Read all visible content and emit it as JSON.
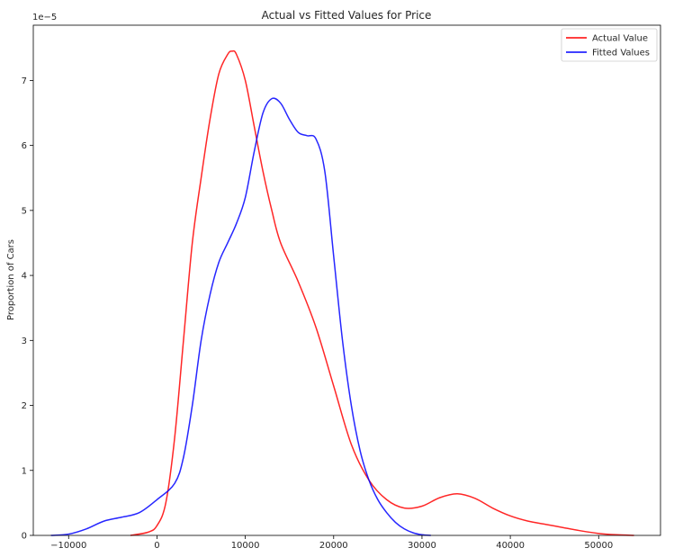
{
  "chart_data": {
    "type": "line",
    "title": "Actual vs Fitted Values for Price",
    "xlabel": "",
    "ylabel": "Proportion of Cars",
    "y_multiplier_label": "1e−5",
    "xlim": [
      -14000,
      57000
    ],
    "ylim": [
      0,
      7.85
    ],
    "x_ticks": [
      -10000,
      0,
      10000,
      20000,
      30000,
      40000,
      50000
    ],
    "x_tick_labels": [
      "−10000",
      "0",
      "10000",
      "20000",
      "30000",
      "40000",
      "50000"
    ],
    "y_ticks": [
      0,
      1,
      2,
      3,
      4,
      5,
      6,
      7
    ],
    "y_tick_labels": [
      "0",
      "1",
      "2",
      "3",
      "4",
      "5",
      "6",
      "7"
    ],
    "grid": false,
    "legend_position": "top-right",
    "series": [
      {
        "name": "Actual Value",
        "color": "#ff0000",
        "points": [
          [
            -3000,
            0.0
          ],
          [
            -1000,
            0.05
          ],
          [
            0,
            0.15
          ],
          [
            1000,
            0.5
          ],
          [
            2000,
            1.5
          ],
          [
            3000,
            3.0
          ],
          [
            4000,
            4.5
          ],
          [
            5000,
            5.5
          ],
          [
            6000,
            6.4
          ],
          [
            7000,
            7.1
          ],
          [
            8000,
            7.4
          ],
          [
            8500,
            7.45
          ],
          [
            9000,
            7.4
          ],
          [
            10000,
            7.0
          ],
          [
            11000,
            6.3
          ],
          [
            12000,
            5.6
          ],
          [
            13000,
            5.0
          ],
          [
            14000,
            4.5
          ],
          [
            16000,
            3.9
          ],
          [
            18000,
            3.2
          ],
          [
            20000,
            2.3
          ],
          [
            22000,
            1.4
          ],
          [
            24000,
            0.85
          ],
          [
            26000,
            0.55
          ],
          [
            28000,
            0.42
          ],
          [
            30000,
            0.45
          ],
          [
            32000,
            0.58
          ],
          [
            34000,
            0.64
          ],
          [
            36000,
            0.57
          ],
          [
            38000,
            0.42
          ],
          [
            40000,
            0.3
          ],
          [
            42000,
            0.22
          ],
          [
            44000,
            0.17
          ],
          [
            46000,
            0.12
          ],
          [
            48000,
            0.07
          ],
          [
            50000,
            0.03
          ],
          [
            52000,
            0.01
          ],
          [
            54000,
            0.0
          ]
        ]
      },
      {
        "name": "Fitted Values",
        "color": "#0000ff",
        "points": [
          [
            -12000,
            0.0
          ],
          [
            -10000,
            0.02
          ],
          [
            -8000,
            0.1
          ],
          [
            -6000,
            0.22
          ],
          [
            -4000,
            0.28
          ],
          [
            -2000,
            0.35
          ],
          [
            0,
            0.55
          ],
          [
            2000,
            0.8
          ],
          [
            3000,
            1.2
          ],
          [
            4000,
            2.0
          ],
          [
            5000,
            3.0
          ],
          [
            6000,
            3.7
          ],
          [
            7000,
            4.2
          ],
          [
            8000,
            4.5
          ],
          [
            9000,
            4.8
          ],
          [
            10000,
            5.2
          ],
          [
            11000,
            5.9
          ],
          [
            12000,
            6.5
          ],
          [
            13000,
            6.72
          ],
          [
            14000,
            6.65
          ],
          [
            15000,
            6.4
          ],
          [
            16000,
            6.2
          ],
          [
            17000,
            6.15
          ],
          [
            18000,
            6.1
          ],
          [
            19000,
            5.6
          ],
          [
            20000,
            4.3
          ],
          [
            21000,
            3.0
          ],
          [
            22000,
            2.0
          ],
          [
            23000,
            1.3
          ],
          [
            24000,
            0.85
          ],
          [
            25000,
            0.55
          ],
          [
            26000,
            0.35
          ],
          [
            27000,
            0.2
          ],
          [
            28000,
            0.1
          ],
          [
            29000,
            0.04
          ],
          [
            30000,
            0.01
          ],
          [
            31000,
            0.0
          ]
        ]
      }
    ]
  }
}
